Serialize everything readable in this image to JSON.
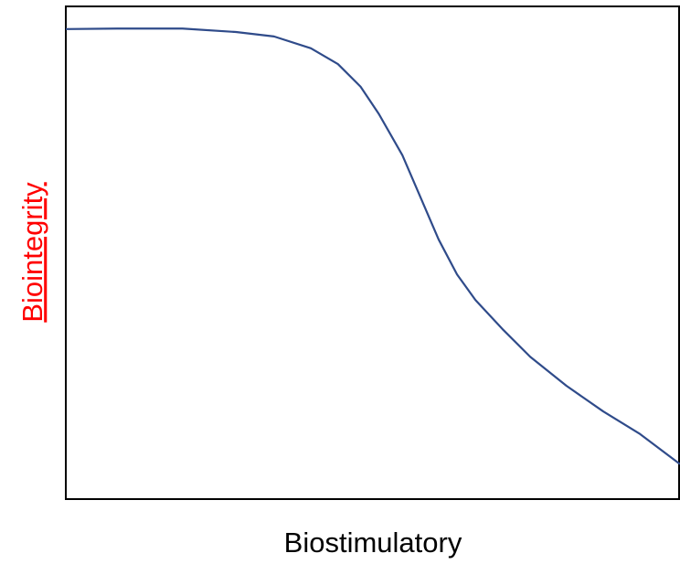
{
  "chart_data": {
    "type": "line",
    "x_label": "Biostimulatory",
    "y_label": "Biointegrity",
    "y_label_color": "#ff0000",
    "xlim": [
      0,
      100
    ],
    "ylim": [
      0,
      100
    ],
    "x": [
      0,
      8.6,
      19.0,
      27.7,
      33.9,
      39.9,
      44.3,
      48.0,
      51.0,
      54.8,
      57.7,
      60.7,
      63.7,
      66.7,
      71.1,
      75.6,
      81.5,
      87.5,
      93.5,
      100
    ],
    "series": [
      {
        "color": "#2f4b8a",
        "values": [
          95.4,
          95.5,
          95.5,
          94.8,
          93.9,
          91.5,
          88.3,
          83.7,
          78.1,
          69.8,
          61.4,
          52.7,
          45.6,
          40.4,
          34.5,
          28.9,
          23.0,
          17.8,
          13.2,
          7.1
        ]
      }
    ]
  }
}
